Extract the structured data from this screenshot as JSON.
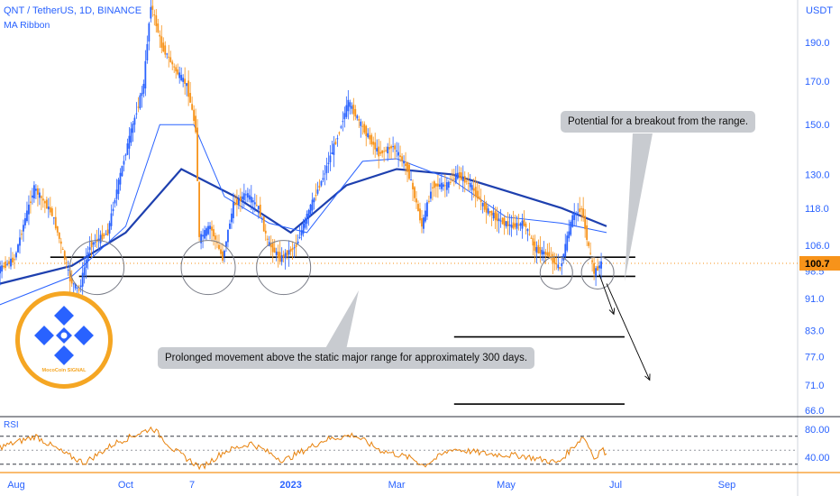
{
  "header": {
    "title": "QNT / TetherUS, 1D, BINANCE",
    "indicator": "MA Ribbon",
    "unit": "USDT",
    "rsi_label": "RSI"
  },
  "annotations": {
    "breakout": "Potential for a breakout from the range.",
    "range": "Prolonged movement above the static major range for approximately 300 days."
  },
  "logo": {
    "caption": "MocoCoin SIGNAL",
    "icon": "binance-diamond-icon"
  },
  "colors": {
    "bull": "#2962ff",
    "bear": "#f7931a",
    "ma_thick": "#1e40af",
    "ma_thin": "#2962ff",
    "rsi": "#e8820c",
    "price_badge": "#f7931a",
    "axis_text": "#2962ff"
  },
  "chart_data": {
    "type": "candlestick",
    "symbol": "QNT / TetherUS",
    "interval": "1D",
    "exchange": "BINANCE",
    "y_scale": "log",
    "y_ticks": [
      190.0,
      170.0,
      150.0,
      130.0,
      118.0,
      106.0,
      98.5,
      91.0,
      83.0,
      77.0,
      71.0,
      66.0
    ],
    "y_tick_labels": [
      "190.0",
      "170.0",
      "150.0",
      "130.0",
      "118.0",
      "106.0",
      "98.5",
      "91.0",
      "83.0",
      "77.0",
      "71.0",
      "66.0"
    ],
    "last_price": 100.7,
    "last_price_label": "100.7",
    "x_ticks": [
      "Aug",
      "Oct",
      "7",
      "2023",
      "Mar",
      "May",
      "Jul",
      "Sep"
    ],
    "price_path": [
      [
        "2022-07-15",
        96
      ],
      [
        "2022-08-01",
        102
      ],
      [
        "2022-08-12",
        125
      ],
      [
        "2022-08-22",
        116
      ],
      [
        "2022-09-01",
        96
      ],
      [
        "2022-09-06",
        93
      ],
      [
        "2022-09-12",
        106
      ],
      [
        "2022-09-22",
        110
      ],
      [
        "2022-09-29",
        130
      ],
      [
        "2022-10-06",
        150
      ],
      [
        "2022-10-12",
        168
      ],
      [
        "2022-10-16",
        212
      ],
      [
        "2022-10-22",
        188
      ],
      [
        "2022-10-30",
        175
      ],
      [
        "2022-11-05",
        168
      ],
      [
        "2022-11-10",
        148
      ],
      [
        "2022-11-12",
        108
      ],
      [
        "2022-11-18",
        112
      ],
      [
        "2022-11-25",
        102
      ],
      [
        "2022-12-01",
        119
      ],
      [
        "2022-12-08",
        123
      ],
      [
        "2022-12-15",
        118
      ],
      [
        "2022-12-20",
        107
      ],
      [
        "2022-12-27",
        102
      ],
      [
        "2023-01-05",
        106
      ],
      [
        "2023-01-12",
        117
      ],
      [
        "2023-01-20",
        129
      ],
      [
        "2023-01-28",
        145
      ],
      [
        "2023-02-03",
        160
      ],
      [
        "2023-02-10",
        150
      ],
      [
        "2023-02-20",
        138
      ],
      [
        "2023-02-28",
        141
      ],
      [
        "2023-03-08",
        132
      ],
      [
        "2023-03-12",
        122
      ],
      [
        "2023-03-16",
        112
      ],
      [
        "2023-03-22",
        126
      ],
      [
        "2023-03-30",
        126
      ],
      [
        "2023-04-05",
        130
      ],
      [
        "2023-04-12",
        126
      ],
      [
        "2023-04-20",
        118
      ],
      [
        "2023-04-28",
        114
      ],
      [
        "2023-05-05",
        112
      ],
      [
        "2023-05-12",
        113
      ],
      [
        "2023-05-18",
        105
      ],
      [
        "2023-05-26",
        103
      ],
      [
        "2023-06-01",
        99
      ],
      [
        "2023-06-08",
        115
      ],
      [
        "2023-06-13",
        118
      ],
      [
        "2023-06-17",
        105
      ],
      [
        "2023-06-20",
        98
      ],
      [
        "2023-06-24",
        100.7
      ]
    ],
    "ma_ribbon": [
      {
        "name": "MA thick",
        "points": [
          [
            "2022-07-15",
            94
          ],
          [
            "2022-09-01",
            100
          ],
          [
            "2022-10-01",
            110
          ],
          [
            "2022-11-01",
            132
          ],
          [
            "2022-12-01",
            122
          ],
          [
            "2023-01-01",
            110
          ],
          [
            "2023-02-01",
            126
          ],
          [
            "2023-03-01",
            132
          ],
          [
            "2023-04-01",
            130
          ],
          [
            "2023-05-01",
            124
          ],
          [
            "2023-06-01",
            118
          ],
          [
            "2023-06-26",
            112
          ]
        ]
      },
      {
        "name": "MA thin",
        "points": [
          [
            "2022-07-15",
            88
          ],
          [
            "2022-09-01",
            97
          ],
          [
            "2022-10-01",
            112
          ],
          [
            "2022-10-20",
            150
          ],
          [
            "2022-11-08",
            150
          ],
          [
            "2022-11-25",
            122
          ],
          [
            "2022-12-20",
            113
          ],
          [
            "2023-01-10",
            110
          ],
          [
            "2023-02-10",
            135
          ],
          [
            "2023-03-01",
            136
          ],
          [
            "2023-04-01",
            128
          ],
          [
            "2023-05-01",
            115
          ],
          [
            "2023-06-01",
            113
          ],
          [
            "2023-06-26",
            110
          ]
        ]
      }
    ],
    "levels": [
      {
        "price": 102.5,
        "from": "2022-08-20",
        "to": "2023-07-12"
      },
      {
        "price": 97.0,
        "from": "2022-09-05",
        "to": "2023-07-12"
      },
      {
        "price": 81.5,
        "from": "2023-04-02",
        "to": "2023-07-06"
      },
      {
        "price": 67.2,
        "from": "2023-04-02",
        "to": "2023-07-06"
      }
    ],
    "highlighted_touches": [
      "2022-09-15",
      "2022-11-16",
      "2022-12-28",
      "2023-05-29",
      "2023-06-21"
    ],
    "projection_arrows": [
      {
        "from": [
          "2023-06-22",
          97.5
        ],
        "to": [
          "2023-06-30",
          87
        ]
      },
      {
        "from": [
          "2023-06-26",
          95
        ],
        "to": [
          "2023-07-20",
          72
        ]
      }
    ],
    "rsi": {
      "levels": [
        70,
        50,
        30
      ],
      "tick_labels": [
        "80.00",
        "40.00"
      ],
      "tick_values": [
        80,
        40
      ],
      "points": [
        [
          "2022-07-15",
          48
        ],
        [
          "2022-08-12",
          70
        ],
        [
          "2022-08-28",
          45
        ],
        [
          "2022-09-08",
          32
        ],
        [
          "2022-09-25",
          60
        ],
        [
          "2022-10-16",
          82
        ],
        [
          "2022-10-28",
          50
        ],
        [
          "2022-11-12",
          25
        ],
        [
          "2022-11-25",
          48
        ],
        [
          "2022-12-10",
          60
        ],
        [
          "2022-12-28",
          35
        ],
        [
          "2023-01-20",
          65
        ],
        [
          "2023-02-05",
          72
        ],
        [
          "2023-02-20",
          50
        ],
        [
          "2023-03-10",
          38
        ],
        [
          "2023-03-16",
          28
        ],
        [
          "2023-04-01",
          52
        ],
        [
          "2023-04-20",
          45
        ],
        [
          "2023-05-10",
          42
        ],
        [
          "2023-05-30",
          32
        ],
        [
          "2023-06-13",
          70
        ],
        [
          "2023-06-20",
          37
        ],
        [
          "2023-06-23",
          52
        ],
        [
          "2023-06-26",
          45
        ]
      ]
    }
  }
}
